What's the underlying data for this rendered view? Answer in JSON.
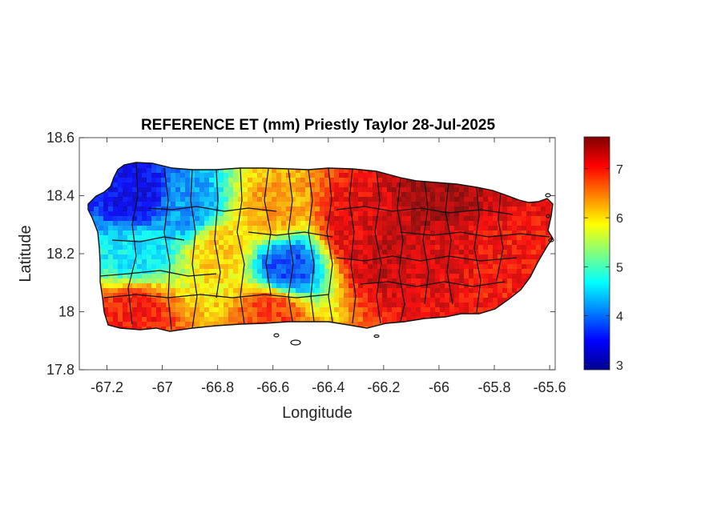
{
  "chart_data": {
    "type": "heatmap",
    "title": "REFERENCE ET (mm) Priestly Taylor 28-Jul-2025",
    "xlabel": "Longitude",
    "ylabel": "Latitude",
    "xlim": [
      -67.3,
      -65.58
    ],
    "ylim": [
      17.8,
      18.6
    ],
    "xticks": [
      -67.2,
      -67,
      -66.8,
      -66.6,
      -66.4,
      -66.2,
      -66,
      -65.8,
      -65.6
    ],
    "xtick_labels": [
      "-67.2",
      "-67",
      "-66.8",
      "-66.6",
      "-66.4",
      "-66.2",
      "-66",
      "-65.8",
      "-65.6"
    ],
    "yticks": [
      17.8,
      18,
      18.2,
      18.4,
      18.6
    ],
    "ytick_labels": [
      "17.8",
      "18",
      "18.2",
      "18.4",
      "18.6"
    ],
    "colorbar": {
      "colormap": "jet",
      "range": [
        2.9,
        7.65
      ],
      "ticks": [
        3,
        4,
        5,
        6,
        7
      ],
      "tick_labels": [
        "3",
        "4",
        "5",
        "6",
        "7"
      ]
    },
    "grid": false,
    "value_samples": [
      {
        "lon": -67.1,
        "lat": 18.4,
        "value": 3.4
      },
      {
        "lon": -67.1,
        "lat": 18.2,
        "value": 4.6
      },
      {
        "lon": -67.1,
        "lat": 18.0,
        "value": 7.0
      },
      {
        "lon": -66.9,
        "lat": 18.35,
        "value": 4.2
      },
      {
        "lon": -66.8,
        "lat": 18.22,
        "value": 6.1
      },
      {
        "lon": -66.55,
        "lat": 18.15,
        "value": 3.8
      },
      {
        "lon": -66.6,
        "lat": 18.35,
        "value": 6.3
      },
      {
        "lon": -66.6,
        "lat": 18.0,
        "value": 6.8
      },
      {
        "lon": -66.3,
        "lat": 18.3,
        "value": 7.2
      },
      {
        "lon": -66.2,
        "lat": 18.2,
        "value": 7.3
      },
      {
        "lon": -66.0,
        "lat": 18.4,
        "value": 7.5
      },
      {
        "lon": -65.95,
        "lat": 18.2,
        "value": 7.2
      },
      {
        "lon": -65.8,
        "lat": 18.15,
        "value": 7.0
      }
    ]
  }
}
